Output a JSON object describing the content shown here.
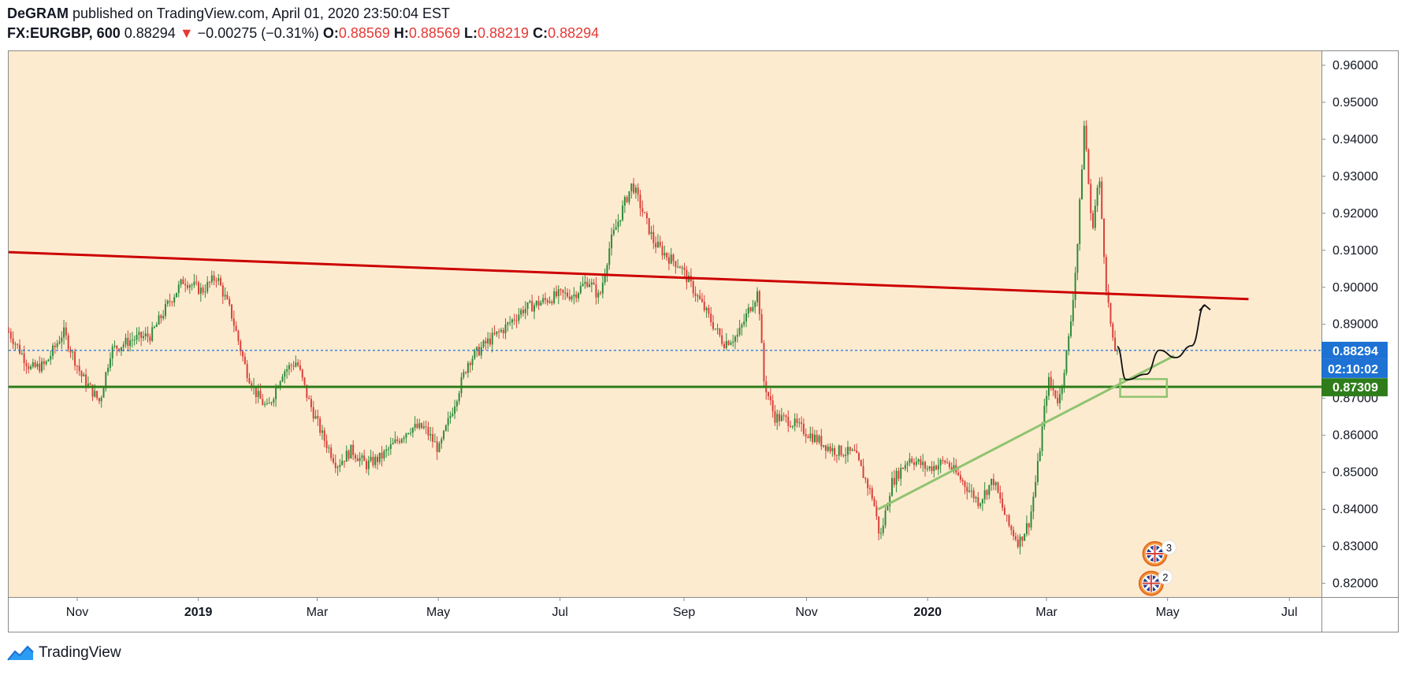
{
  "header": {
    "author": "DeGRAM",
    "published_text": "published on TradingView.com, April 01, 2020 23:50:04 EST",
    "symbol": "FX:EURGBP, 600",
    "last_price": "0.88294",
    "change": "−0.00275 (−0.31%)",
    "o_label": "O:",
    "o_value": "0.88569",
    "h_label": "H:",
    "h_value": "0.88569",
    "l_label": "L:",
    "l_value": "0.88219",
    "c_label": "C:",
    "c_value": "0.88294"
  },
  "footer": {
    "brand": "TradingView"
  },
  "colors": {
    "plot_bg": "#fdebd0",
    "up": "#2e8b3a",
    "down": "#d9413a",
    "resistance": "#cc0000",
    "support": "#2e7d1a",
    "trendline": "#8fc470",
    "price_line": "#1e6fd0",
    "green_badge": "#2e7d1a",
    "blue_badge": "#1e72d4"
  },
  "chart_data": {
    "type": "candlestick",
    "symbol": "FX:EURGBP",
    "interval": "600",
    "y_ticks": [
      "0.96000",
      "0.95000",
      "0.94000",
      "0.93000",
      "0.92000",
      "0.91000",
      "0.90000",
      "0.89000",
      "0.88000",
      "0.87000",
      "0.86000",
      "0.85000",
      "0.84000",
      "0.83000",
      "0.82000"
    ],
    "ylim": [
      0.8163,
      0.9638
    ],
    "x_ticks": [
      {
        "label": "Nov",
        "date": 2018.834,
        "bold": false
      },
      {
        "label": "2019",
        "date": 2019.0,
        "bold": true
      },
      {
        "label": "Mar",
        "date": 2019.163,
        "bold": false
      },
      {
        "label": "May",
        "date": 2019.329,
        "bold": false
      },
      {
        "label": "Jul",
        "date": 2019.496,
        "bold": false
      },
      {
        "label": "Sep",
        "date": 2019.666,
        "bold": false
      },
      {
        "label": "Nov",
        "date": 2019.834,
        "bold": false
      },
      {
        "label": "2020",
        "date": 2020.0,
        "bold": true
      },
      {
        "label": "Mar",
        "date": 2020.163,
        "bold": false
      },
      {
        "label": "May",
        "date": 2020.329,
        "bold": false
      },
      {
        "label": "Jul",
        "date": 2020.496,
        "bold": false
      }
    ],
    "xlim": [
      2018.74,
      2020.54
    ],
    "price_path": [
      [
        2018.74,
        0.888
      ],
      [
        2018.77,
        0.878
      ],
      [
        2018.79,
        0.879
      ],
      [
        2018.815,
        0.888
      ],
      [
        2018.84,
        0.876
      ],
      [
        2018.865,
        0.869
      ],
      [
        2018.88,
        0.883
      ],
      [
        2018.91,
        0.886
      ],
      [
        2018.935,
        0.887
      ],
      [
        2018.96,
        0.896
      ],
      [
        2018.98,
        0.902
      ],
      [
        2019.005,
        0.899
      ],
      [
        2019.025,
        0.903
      ],
      [
        2019.045,
        0.893
      ],
      [
        2019.065,
        0.878
      ],
      [
        2019.08,
        0.871
      ],
      [
        2019.095,
        0.867
      ],
      [
        2019.115,
        0.877
      ],
      [
        2019.135,
        0.88
      ],
      [
        2019.15,
        0.87
      ],
      [
        2019.17,
        0.86
      ],
      [
        2019.19,
        0.852
      ],
      [
        2019.21,
        0.856
      ],
      [
        2019.23,
        0.852
      ],
      [
        2019.25,
        0.854
      ],
      [
        2019.27,
        0.858
      ],
      [
        2019.29,
        0.862
      ],
      [
        2019.31,
        0.862
      ],
      [
        2019.33,
        0.856
      ],
      [
        2019.35,
        0.868
      ],
      [
        2019.37,
        0.88
      ],
      [
        2019.395,
        0.885
      ],
      [
        2019.42,
        0.889
      ],
      [
        2019.445,
        0.894
      ],
      [
        2019.47,
        0.896
      ],
      [
        2019.495,
        0.898
      ],
      [
        2019.515,
        0.898
      ],
      [
        2019.535,
        0.902
      ],
      [
        2019.55,
        0.897
      ],
      [
        2019.565,
        0.912
      ],
      [
        2019.585,
        0.923
      ],
      [
        2019.595,
        0.928
      ],
      [
        2019.61,
        0.92
      ],
      [
        2019.625,
        0.912
      ],
      [
        2019.645,
        0.908
      ],
      [
        2019.66,
        0.906
      ],
      [
        2019.68,
        0.899
      ],
      [
        2019.7,
        0.892
      ],
      [
        2019.72,
        0.885
      ],
      [
        2019.74,
        0.887
      ],
      [
        2019.755,
        0.894
      ],
      [
        2019.768,
        0.899
      ],
      [
        2019.775,
        0.875
      ],
      [
        2019.79,
        0.865
      ],
      [
        2019.81,
        0.864
      ],
      [
        2019.84,
        0.86
      ],
      [
        2019.87,
        0.856
      ],
      [
        2019.9,
        0.855
      ],
      [
        2019.925,
        0.843
      ],
      [
        2019.935,
        0.832
      ],
      [
        2019.95,
        0.847
      ],
      [
        2019.975,
        0.854
      ],
      [
        2020.0,
        0.851
      ],
      [
        2020.025,
        0.853
      ],
      [
        2020.05,
        0.847
      ],
      [
        2020.07,
        0.842
      ],
      [
        2020.09,
        0.848
      ],
      [
        2020.11,
        0.836
      ],
      [
        2020.125,
        0.831
      ],
      [
        2020.14,
        0.837
      ],
      [
        2020.15,
        0.85
      ],
      [
        2020.165,
        0.875
      ],
      [
        2020.18,
        0.869
      ],
      [
        2020.195,
        0.888
      ],
      [
        2020.205,
        0.91
      ],
      [
        2020.215,
        0.945
      ],
      [
        2020.225,
        0.915
      ],
      [
        2020.235,
        0.93
      ],
      [
        2020.245,
        0.9
      ],
      [
        2020.255,
        0.883
      ],
      [
        2020.26,
        0.8829
      ]
    ],
    "resistance_line": {
      "label": "resistance",
      "points": [
        [
          2018.74,
          0.9095
        ],
        [
          2020.44,
          0.8968
        ]
      ]
    },
    "support_line": {
      "label": "support",
      "value": 0.87309
    },
    "ascending_trendline": {
      "label": "ascending support",
      "points": [
        [
          2019.932,
          0.84
        ],
        [
          2020.338,
          0.8815
        ]
      ]
    },
    "projection_path": [
      [
        2020.26,
        0.884
      ],
      [
        2020.272,
        0.875
      ],
      [
        2020.3,
        0.8765
      ],
      [
        2020.318,
        0.883
      ],
      [
        2020.34,
        0.881
      ],
      [
        2020.362,
        0.8842
      ],
      [
        2020.38,
        0.8952
      ]
    ],
    "target_zone": {
      "x0": 2020.264,
      "x1": 2020.328,
      "y0": 0.8704,
      "y1": 0.8752
    },
    "current_price": {
      "value": 0.88294,
      "label": "0.88294",
      "countdown": "02:10:02"
    },
    "support_badge": {
      "value": 0.87309,
      "label": "0.87309"
    },
    "events": [
      {
        "label": "3",
        "date": 2020.318,
        "price": 0.828
      },
      {
        "label": "2",
        "date": 2020.313,
        "price": 0.82
      }
    ]
  }
}
